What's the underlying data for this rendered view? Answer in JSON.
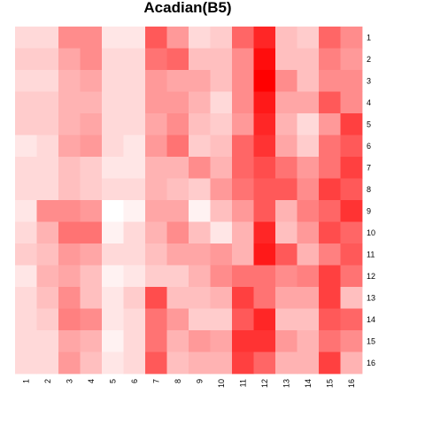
{
  "chart_data": {
    "type": "heatmap",
    "title": "Acadian(B5)",
    "row_labels": [
      "1",
      "2",
      "3",
      "4",
      "5",
      "6",
      "7",
      "8",
      "9",
      "10",
      "11",
      "12",
      "13",
      "14",
      "15",
      "16"
    ],
    "col_labels": [
      "1",
      "2",
      "3",
      "4",
      "5",
      "6",
      "7",
      "8",
      "9",
      "10",
      "11",
      "12",
      "13",
      "14",
      "15",
      "16"
    ],
    "value_scale": "white-to-red intensity (0 = white, 1 = pure red)",
    "colors": {
      "low": "#ffffff",
      "high": "#ff0000"
    },
    "values": [
      [
        0.15,
        0.15,
        0.45,
        0.45,
        0.1,
        0.1,
        0.65,
        0.4,
        0.15,
        0.2,
        0.6,
        0.85,
        0.25,
        0.2,
        0.6,
        0.45
      ],
      [
        0.2,
        0.2,
        0.35,
        0.45,
        0.15,
        0.15,
        0.55,
        0.6,
        0.25,
        0.25,
        0.45,
        0.95,
        0.25,
        0.25,
        0.5,
        0.4
      ],
      [
        0.15,
        0.15,
        0.3,
        0.35,
        0.15,
        0.15,
        0.4,
        0.35,
        0.35,
        0.25,
        0.45,
        1.0,
        0.45,
        0.25,
        0.45,
        0.45
      ],
      [
        0.2,
        0.2,
        0.3,
        0.3,
        0.15,
        0.15,
        0.4,
        0.4,
        0.3,
        0.15,
        0.45,
        0.9,
        0.35,
        0.35,
        0.65,
        0.45
      ],
      [
        0.2,
        0.2,
        0.3,
        0.35,
        0.15,
        0.15,
        0.35,
        0.45,
        0.25,
        0.2,
        0.4,
        0.85,
        0.3,
        0.15,
        0.4,
        0.75
      ],
      [
        0.1,
        0.15,
        0.35,
        0.4,
        0.15,
        0.1,
        0.4,
        0.55,
        0.2,
        0.25,
        0.6,
        0.8,
        0.35,
        0.2,
        0.55,
        0.65
      ],
      [
        0.15,
        0.15,
        0.25,
        0.2,
        0.1,
        0.1,
        0.3,
        0.3,
        0.45,
        0.3,
        0.6,
        0.7,
        0.55,
        0.4,
        0.55,
        0.75
      ],
      [
        0.15,
        0.15,
        0.25,
        0.2,
        0.15,
        0.15,
        0.3,
        0.25,
        0.2,
        0.4,
        0.55,
        0.65,
        0.65,
        0.45,
        0.75,
        0.65
      ],
      [
        0.1,
        0.45,
        0.45,
        0.4,
        0.0,
        0.05,
        0.35,
        0.35,
        0.05,
        0.25,
        0.4,
        0.65,
        0.3,
        0.5,
        0.6,
        0.8
      ],
      [
        0.15,
        0.3,
        0.55,
        0.55,
        0.05,
        0.15,
        0.3,
        0.45,
        0.25,
        0.1,
        0.3,
        0.85,
        0.25,
        0.4,
        0.7,
        0.6
      ],
      [
        0.2,
        0.25,
        0.4,
        0.35,
        0.15,
        0.15,
        0.25,
        0.35,
        0.35,
        0.4,
        0.3,
        0.9,
        0.65,
        0.3,
        0.5,
        0.65
      ],
      [
        0.1,
        0.3,
        0.35,
        0.25,
        0.05,
        0.1,
        0.2,
        0.2,
        0.3,
        0.45,
        0.55,
        0.55,
        0.45,
        0.5,
        0.75,
        0.55
      ],
      [
        0.15,
        0.25,
        0.45,
        0.25,
        0.1,
        0.2,
        0.7,
        0.25,
        0.25,
        0.3,
        0.75,
        0.55,
        0.35,
        0.35,
        0.75,
        0.25
      ],
      [
        0.15,
        0.2,
        0.5,
        0.45,
        0.1,
        0.15,
        0.55,
        0.4,
        0.2,
        0.2,
        0.65,
        0.85,
        0.25,
        0.25,
        0.65,
        0.6
      ],
      [
        0.15,
        0.15,
        0.35,
        0.3,
        0.05,
        0.15,
        0.55,
        0.3,
        0.4,
        0.35,
        0.8,
        0.8,
        0.4,
        0.3,
        0.55,
        0.45
      ],
      [
        0.15,
        0.15,
        0.4,
        0.25,
        0.1,
        0.15,
        0.65,
        0.25,
        0.3,
        0.3,
        0.75,
        0.6,
        0.3,
        0.3,
        0.75,
        0.3
      ]
    ]
  }
}
